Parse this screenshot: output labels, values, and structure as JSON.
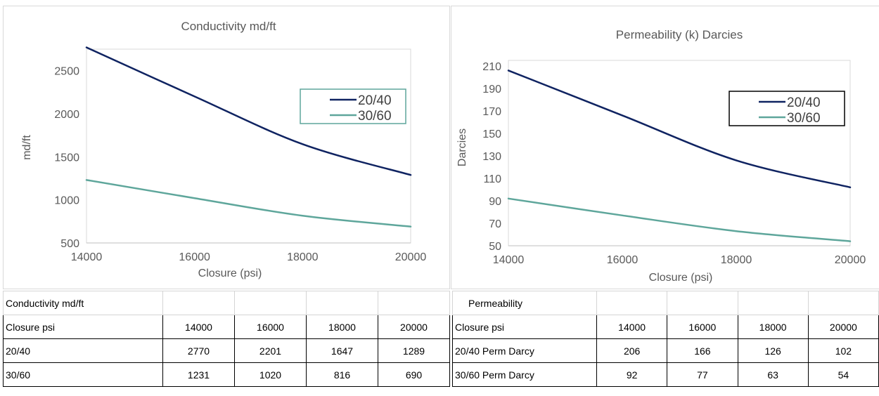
{
  "chart_data": [
    {
      "type": "line",
      "title": "Conductivity md/ft",
      "xlabel": "Closure (psi)",
      "ylabel": "md/ft",
      "x": [
        14000,
        16000,
        18000,
        20000
      ],
      "xlim": [
        14000,
        20000
      ],
      "ylim": [
        500,
        2750
      ],
      "yticks": [
        500,
        1000,
        1500,
        2000,
        2500
      ],
      "xticks": [
        14000,
        16000,
        18000,
        20000
      ],
      "series": [
        {
          "name": "20/40",
          "values": [
            2770,
            2201,
            1647,
            1289
          ],
          "color": "#0f2361"
        },
        {
          "name": "30/60",
          "values": [
            1231,
            1020,
            816,
            690
          ],
          "color": "#5ea69b"
        }
      ],
      "legend": "top-right",
      "legend_border": "#5ea69b",
      "grid": false
    },
    {
      "type": "line",
      "title": "Permeability (k) Darcies",
      "xlabel": "Closure (psi)",
      "ylabel": "Darcies",
      "x": [
        14000,
        16000,
        18000,
        20000
      ],
      "xlim": [
        14000,
        20000
      ],
      "ylim": [
        50,
        215
      ],
      "yticks": [
        50,
        70,
        90,
        110,
        130,
        150,
        170,
        190,
        210
      ],
      "xticks": [
        14000,
        16000,
        18000,
        20000
      ],
      "series": [
        {
          "name": "20/40",
          "values": [
            206,
            166,
            126,
            102
          ],
          "color": "#0f2361"
        },
        {
          "name": "30/60",
          "values": [
            92,
            77,
            63,
            54
          ],
          "color": "#5ea69b"
        }
      ],
      "legend": "top-right",
      "legend_border": "#000000",
      "grid": false
    }
  ],
  "tables": {
    "left": {
      "title": "Conductivity md/ft",
      "rows": [
        {
          "label": "Closure psi",
          "values": [
            "14000",
            "16000",
            "18000",
            "20000"
          ]
        },
        {
          "label": "20/40",
          "values": [
            "2770",
            "2201",
            "1647",
            "1289"
          ]
        },
        {
          "label": "30/60",
          "values": [
            "1231",
            "1020",
            "816",
            "690"
          ]
        }
      ]
    },
    "right": {
      "title": "Permeability",
      "rows": [
        {
          "label": "Closure psi",
          "values": [
            "14000",
            "16000",
            "18000",
            "20000"
          ]
        },
        {
          "label": "20/40 Perm Darcy",
          "values": [
            "206",
            "166",
            "126",
            "102"
          ]
        },
        {
          "label": "30/60 Perm Darcy",
          "values": [
            "92",
            "77",
            "63",
            "54"
          ]
        }
      ]
    }
  }
}
